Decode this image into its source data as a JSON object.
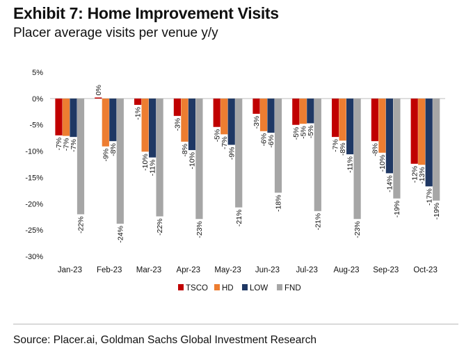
{
  "header": {
    "title": "Exhibit 7: Home Improvement Visits",
    "subtitle": "Placer average visits per venue y/y"
  },
  "footer": {
    "source": "Source: Placer.ai, Goldman Sachs Global Investment Research"
  },
  "chart_data": {
    "type": "bar",
    "title": "Exhibit 7: Home Improvement Visits",
    "subtitle": "Placer average visits per venue y/y",
    "xlabel": "",
    "ylabel": "",
    "ylim": [
      -30,
      5
    ],
    "yticks": [
      5,
      0,
      -5,
      -10,
      -15,
      -20,
      -25,
      -30
    ],
    "ytick_labels": [
      "5%",
      "0%",
      "-5%",
      "-10%",
      "-15%",
      "-20%",
      "-25%",
      "-30%"
    ],
    "grid": false,
    "legend": "bottom-center",
    "categories": [
      "Jan-23",
      "Feb-23",
      "Mar-23",
      "Apr-23",
      "May-23",
      "Jun-23",
      "Jul-23",
      "Aug-23",
      "Sep-23",
      "Oct-23"
    ],
    "series": [
      {
        "name": "TSCO",
        "color": "#c00000",
        "values": [
          -7,
          0.2,
          -1.2,
          -3.3,
          -5.4,
          -2.9,
          -5,
          -7.3,
          -8.1,
          -12.4
        ],
        "labels": [
          "-7%",
          "0%",
          "-1%",
          "-3%",
          "-5%",
          "-3%",
          "-5%",
          "-7%",
          "-8%",
          "-12%"
        ]
      },
      {
        "name": "HD",
        "color": "#ed7d31",
        "values": [
          -7.1,
          -9.1,
          -10.1,
          -8.2,
          -6.8,
          -6.2,
          -4.8,
          -8,
          -10.3,
          -12.6
        ],
        "labels": [
          "-7%",
          "-9%",
          "-10%",
          "-8%",
          "-7%",
          "-6%",
          "-5%",
          "-8%",
          "-10%",
          "-13%"
        ]
      },
      {
        "name": "LOW",
        "color": "#1f3864",
        "values": [
          -7.3,
          -8.1,
          -11.2,
          -9.8,
          -8.8,
          -6.5,
          -4.7,
          -10.6,
          -14.2,
          -16.7
        ],
        "labels": [
          "-7%",
          "-8%",
          "-11%",
          "-10%",
          "-9%",
          "-6%",
          "-5%",
          "-11%",
          "-14%",
          "-17%"
        ]
      },
      {
        "name": "FND",
        "color": "#a6a6a6",
        "values": [
          -22,
          -23.8,
          -22.4,
          -22.9,
          -20.7,
          -17.9,
          -21.4,
          -22.9,
          -19,
          -19.4
        ],
        "labels": [
          "-22%",
          "-24%",
          "-22%",
          "-23%",
          "-21%",
          "-18%",
          "-21%",
          "-23%",
          "-19%",
          "-19%"
        ]
      }
    ]
  }
}
